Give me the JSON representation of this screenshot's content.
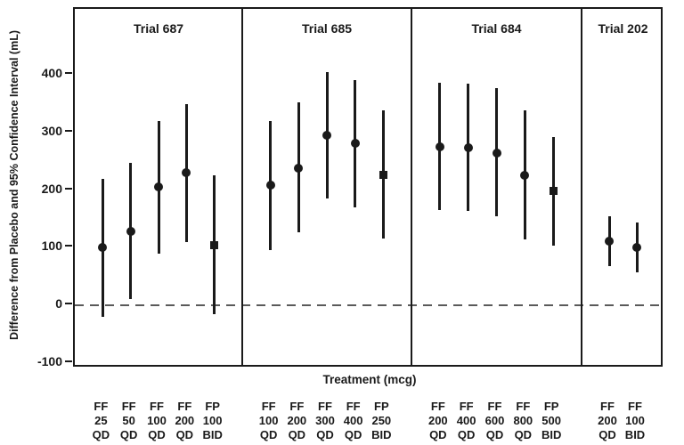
{
  "chart_data": {
    "type": "scatter",
    "subtype": "forest-plot-point-estimates-with-95pct-ci",
    "title": "",
    "xlabel": "Treatment (mcg)",
    "ylabel": "Difference from Placebo and 95% Confidence Interval (mL)",
    "ylim": [
      -110,
      515
    ],
    "yticks": [
      400,
      300,
      200,
      100,
      0,
      -100
    ],
    "grid": false,
    "reference_line_y": 0,
    "reference_line_style": "dashed",
    "panels": [
      {
        "label": "Trial 687",
        "points": [
          {
            "treatment": [
              "FF",
              "25",
              "QD"
            ],
            "estimate": 100,
            "ci_low": -20,
            "ci_high": 220,
            "marker": "circle"
          },
          {
            "treatment": [
              "FF",
              "50",
              "QD"
            ],
            "estimate": 128,
            "ci_low": 10,
            "ci_high": 248,
            "marker": "circle"
          },
          {
            "treatment": [
              "FF",
              "100",
              "QD"
            ],
            "estimate": 205,
            "ci_low": 90,
            "ci_high": 320,
            "marker": "circle"
          },
          {
            "treatment": [
              "FF",
              "200",
              "QD"
            ],
            "estimate": 230,
            "ci_low": 110,
            "ci_high": 350,
            "marker": "circle"
          },
          {
            "treatment": [
              "FP",
              "100",
              "BID"
            ],
            "estimate": 105,
            "ci_low": -15,
            "ci_high": 225,
            "marker": "square"
          }
        ]
      },
      {
        "label": "Trial 685",
        "points": [
          {
            "treatment": [
              "FF",
              "100",
              "QD"
            ],
            "estimate": 208,
            "ci_low": 95,
            "ci_high": 320,
            "marker": "circle"
          },
          {
            "treatment": [
              "FF",
              "200",
              "QD"
            ],
            "estimate": 238,
            "ci_low": 127,
            "ci_high": 352,
            "marker": "circle"
          },
          {
            "treatment": [
              "FF",
              "300",
              "QD"
            ],
            "estimate": 295,
            "ci_low": 185,
            "ci_high": 405,
            "marker": "circle"
          },
          {
            "treatment": [
              "FF",
              "400",
              "QD"
            ],
            "estimate": 281,
            "ci_low": 170,
            "ci_high": 392,
            "marker": "circle"
          },
          {
            "treatment": [
              "FP",
              "250",
              "BID"
            ],
            "estimate": 227,
            "ci_low": 116,
            "ci_high": 338,
            "marker": "square"
          }
        ]
      },
      {
        "label": "Trial 684",
        "points": [
          {
            "treatment": [
              "FF",
              "200",
              "QD"
            ],
            "estimate": 275,
            "ci_low": 165,
            "ci_high": 387,
            "marker": "circle"
          },
          {
            "treatment": [
              "FF",
              "400",
              "QD"
            ],
            "estimate": 273,
            "ci_low": 164,
            "ci_high": 385,
            "marker": "circle"
          },
          {
            "treatment": [
              "FF",
              "600",
              "QD"
            ],
            "estimate": 265,
            "ci_low": 155,
            "ci_high": 377,
            "marker": "circle"
          },
          {
            "treatment": [
              "FF",
              "800",
              "QD"
            ],
            "estimate": 226,
            "ci_low": 115,
            "ci_high": 338,
            "marker": "circle"
          },
          {
            "treatment": [
              "FP",
              "500",
              "BID"
            ],
            "estimate": 198,
            "ci_low": 103,
            "ci_high": 293,
            "marker": "square"
          }
        ]
      },
      {
        "label": "Trial 202",
        "points": [
          {
            "treatment": [
              "FF",
              "200",
              "QD"
            ],
            "estimate": 111,
            "ci_low": 68,
            "ci_high": 155,
            "marker": "circle"
          },
          {
            "treatment": [
              "FF",
              "100",
              "BID"
            ],
            "estimate": 100,
            "ci_low": 57,
            "ci_high": 143,
            "marker": "circle"
          }
        ]
      }
    ]
  }
}
